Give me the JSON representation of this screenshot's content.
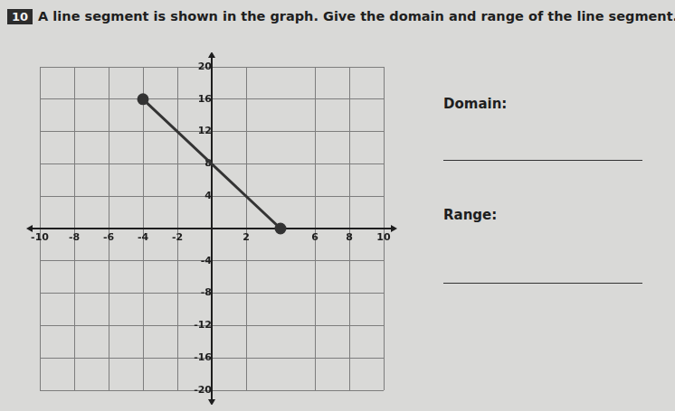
{
  "question": {
    "number": "10",
    "text": "A line segment is shown in the graph. Give the domain and range of the line segment."
  },
  "answer_labels": [
    "Domain:",
    "Range:"
  ],
  "chart_data": {
    "type": "line",
    "x": [
      -4,
      4
    ],
    "values": [
      16,
      0
    ],
    "color": "#333333",
    "marker": "circle",
    "xlim": [
      -10,
      10
    ],
    "xticks": [
      -10,
      -8,
      -6,
      -4,
      -2,
      2,
      6,
      8,
      10
    ],
    "ylim": [
      -20,
      20
    ],
    "yticks": [
      -20,
      -16,
      -12,
      -8,
      -4,
      4,
      8,
      12,
      16,
      20
    ],
    "grid": true
  }
}
